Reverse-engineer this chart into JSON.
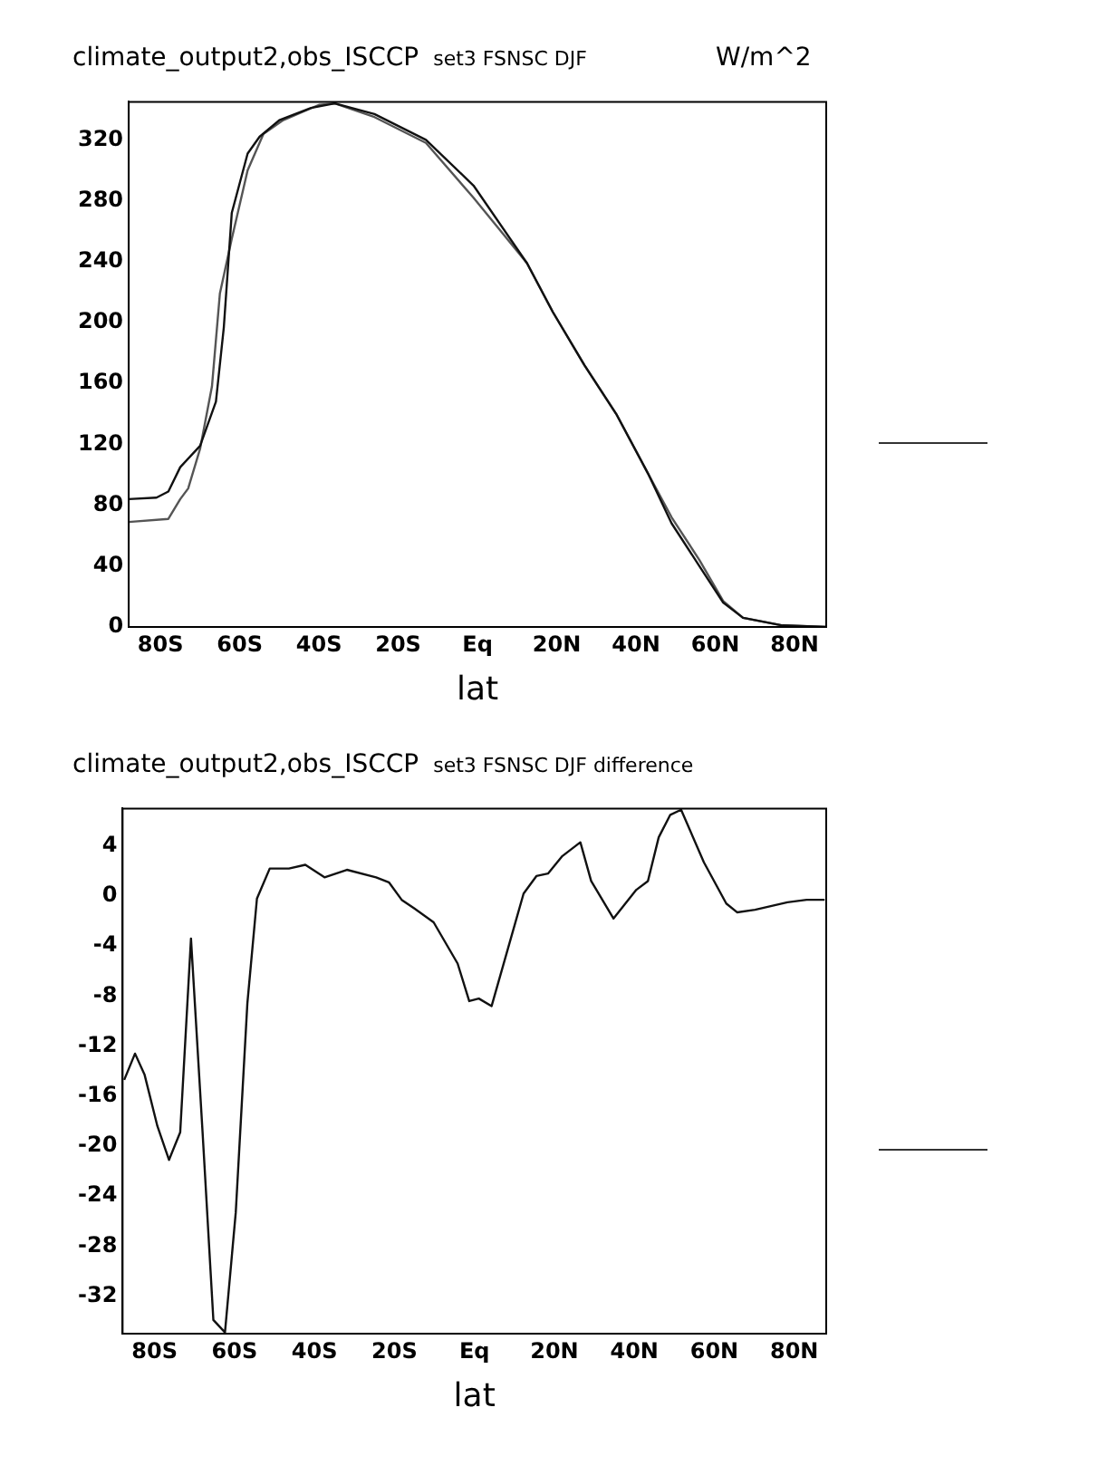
{
  "chart_data": [
    {
      "type": "line",
      "title": "climate_output2,obs_ISCCP",
      "subtitle": "set3 FSNSC DJF",
      "xlabel": "lat",
      "annotations": [
        "W/m^2"
      ],
      "xlim": [
        -88,
        88
      ],
      "xticks": [
        {
          "value": -80,
          "label": "80S"
        },
        {
          "value": -60,
          "label": "60S"
        },
        {
          "value": -40,
          "label": "40S"
        },
        {
          "value": -20,
          "label": "20S"
        },
        {
          "value": 0,
          "label": "Eq"
        },
        {
          "value": 20,
          "label": "20N"
        },
        {
          "value": 40,
          "label": "40N"
        },
        {
          "value": 60,
          "label": "60N"
        },
        {
          "value": 80,
          "label": "80N"
        }
      ],
      "ylim": [
        0,
        345
      ],
      "yticks": [
        0,
        40,
        80,
        120,
        160,
        200,
        240,
        280,
        320
      ],
      "grid": false,
      "legend": false,
      "marker": "none",
      "line_style": "solid",
      "series": [
        {
          "color": "#111111",
          "x": [
            -88,
            -81,
            -78,
            -75,
            -70,
            -66,
            -64,
            -62,
            -58,
            -55,
            -50,
            -42,
            -36,
            -26,
            -13,
            -1,
            12.5,
            19,
            27,
            35,
            43,
            49,
            56,
            62,
            67,
            77,
            88
          ],
          "values": [
            84,
            85,
            89,
            105,
            119,
            148,
            197,
            272,
            311,
            322,
            333,
            341,
            344,
            337,
            320,
            290,
            239,
            207,
            172,
            140,
            101,
            68,
            40,
            16,
            6,
            1,
            0
          ]
        },
        {
          "color": "#555555",
          "x": [
            -88,
            -78,
            -75,
            -73,
            -70,
            -67,
            -65,
            -62,
            -58,
            -54,
            -49,
            -40,
            -36,
            -26,
            -13,
            -1,
            12.5,
            19,
            27,
            35,
            43,
            49,
            56,
            62,
            67,
            77,
            88
          ],
          "values": [
            69,
            71,
            84,
            91,
            117,
            158,
            219,
            255,
            300,
            324,
            333,
            343,
            344,
            335,
            318,
            282,
            239,
            207,
            172,
            140,
            101,
            72,
            44,
            17,
            6,
            1,
            0
          ]
        }
      ]
    },
    {
      "type": "line",
      "title": "climate_output2,obs_ISCCP",
      "subtitle": "set3 FSNSC DJF difference",
      "xlabel": "lat",
      "xlim": [
        -88,
        88
      ],
      "xticks": [
        {
          "value": -80,
          "label": "80S"
        },
        {
          "value": -60,
          "label": "60S"
        },
        {
          "value": -40,
          "label": "40S"
        },
        {
          "value": -20,
          "label": "20S"
        },
        {
          "value": 0,
          "label": "Eq"
        },
        {
          "value": 20,
          "label": "20N"
        },
        {
          "value": 40,
          "label": "40N"
        },
        {
          "value": 60,
          "label": "60N"
        },
        {
          "value": 80,
          "label": "80N"
        }
      ],
      "ylim": [
        -35,
        7
      ],
      "yticks": [
        -32,
        -28,
        -24,
        -20,
        -16,
        -12,
        -8,
        -4,
        0,
        4
      ],
      "grid": false,
      "legend": false,
      "marker": "none",
      "line_style": "solid",
      "series": [
        {
          "color": "#111111",
          "x": [
            -87.6,
            -84.9,
            -82.5,
            -79.3,
            -76.4,
            -73.6,
            -70.9,
            -68,
            -65.3,
            -62.4,
            -59.7,
            -56.8,
            -54.4,
            -51.2,
            -46.4,
            -42.3,
            -37.5,
            -31.9,
            -24.6,
            -21.4,
            -18.2,
            -15,
            -10.2,
            -4.2,
            -1.3,
            1.1,
            4.3,
            12.3,
            15.5,
            18.4,
            22,
            26.5,
            29.2,
            34.8,
            40.5,
            43.4,
            46.1,
            49,
            51.7,
            57.4,
            63,
            65.7,
            70.2,
            78.3,
            83.1,
            87.6
          ],
          "values": [
            -14.7,
            -12.6,
            -14.3,
            -18.4,
            -21.1,
            -18.9,
            -3.4,
            -18.9,
            -33.9,
            -34.9,
            -25.3,
            -8.6,
            -0.2,
            2.2,
            2.2,
            2.5,
            1.5,
            2.1,
            1.5,
            1.1,
            -0.3,
            -1,
            -2.1,
            -5.4,
            -8.4,
            -8.2,
            -8.8,
            0.2,
            1.6,
            1.8,
            3.2,
            4.3,
            1.2,
            -1.8,
            0.5,
            1.2,
            4.7,
            6.5,
            6.9,
            2.7,
            -0.6,
            -1.3,
            -1.1,
            -0.5,
            -0.3,
            -0.3
          ]
        }
      ]
    }
  ]
}
